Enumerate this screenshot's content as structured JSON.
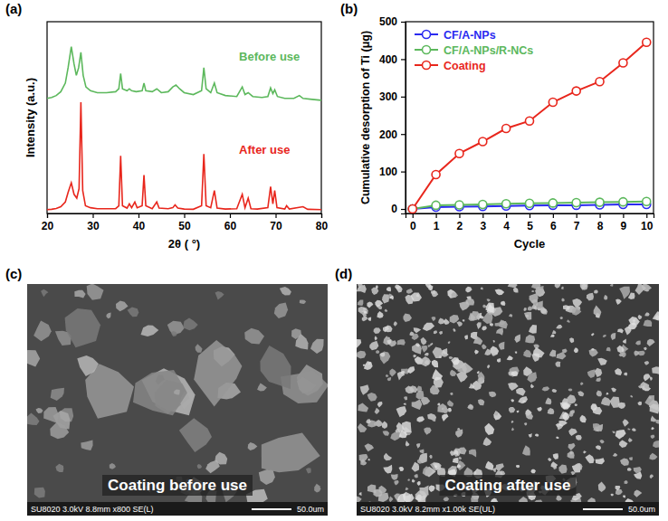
{
  "chart_data": [
    {
      "type": "line",
      "panel": "(a)",
      "x_label": "2θ ( °)",
      "y_label": "Intensity (a.u.)",
      "xlim": [
        20,
        80
      ],
      "xticks": [
        20,
        30,
        40,
        50,
        60,
        70,
        80
      ],
      "ylim": [
        0,
        100
      ],
      "tick_labels": "x",
      "series": [
        {
          "name": "Before use",
          "color": "#5cb85c",
          "x": [
            20,
            21,
            22,
            23,
            24,
            24.6,
            25.3,
            25.9,
            26.4,
            26.9,
            27.4,
            27.9,
            28.5,
            29.5,
            31,
            33,
            35,
            35.7,
            36.1,
            36.5,
            37.5,
            38,
            38.5,
            39.5,
            40.8,
            41.2,
            41.6,
            43,
            44,
            45,
            46.5,
            47.5,
            48.2,
            49,
            50,
            52,
            53.8,
            54.3,
            54.8,
            55.8,
            56.6,
            57.2,
            59,
            61.5,
            62.7,
            63.3,
            64,
            65,
            67,
            68.3,
            68.9,
            69.4,
            69.8,
            70.4,
            72,
            74,
            75.2,
            76,
            78,
            80
          ],
          "values": [
            60,
            60.5,
            61.5,
            63.5,
            68,
            76,
            87,
            78,
            72,
            76,
            84,
            72,
            66,
            64,
            63,
            63,
            63.5,
            65,
            73,
            65,
            64,
            65,
            64,
            63.5,
            64,
            68,
            64,
            63.5,
            65,
            63,
            63.5,
            66,
            67,
            65,
            63,
            62,
            64,
            76,
            65,
            63,
            68,
            63,
            61.5,
            61,
            66,
            62,
            63,
            61,
            60.5,
            61,
            65.5,
            62.5,
            64.5,
            61,
            60,
            60,
            61.5,
            60,
            59.5,
            59
          ]
        },
        {
          "name": "After use",
          "color": "#e8261c",
          "x": [
            20,
            21,
            22,
            23,
            24,
            24.6,
            25.3,
            25.9,
            26.5,
            27,
            27.4,
            27.8,
            28.4,
            29.5,
            31,
            33,
            35,
            35.7,
            36.1,
            36.5,
            37.5,
            38,
            38.5,
            39.2,
            39.7,
            40.8,
            41.2,
            41.6,
            43,
            44,
            44.5,
            46.5,
            47.5,
            48,
            48.6,
            50,
            52,
            53.8,
            54.3,
            54.8,
            55.8,
            56.6,
            57.2,
            59,
            61.5,
            62.7,
            63.3,
            64,
            64.6,
            66,
            68.3,
            68.9,
            69.4,
            69.8,
            70.3,
            72,
            72.4,
            73,
            76,
            77,
            80
          ],
          "values": [
            2,
            2.2,
            2.6,
            3.5,
            6,
            11,
            16,
            10,
            8,
            13,
            58,
            12,
            4,
            3,
            2.5,
            2.5,
            2.5,
            4,
            30,
            4,
            2.8,
            5,
            3,
            6,
            3,
            4,
            20,
            4,
            2.5,
            6,
            2.8,
            2.5,
            3,
            4.5,
            2.8,
            2.3,
            2.2,
            4,
            31,
            4,
            3,
            12,
            2.8,
            2.3,
            2.5,
            10,
            3,
            8,
            2.5,
            2.3,
            3,
            14,
            5,
            12,
            3,
            2.3,
            4,
            2.3,
            3.5,
            2.2,
            2
          ]
        }
      ]
    },
    {
      "type": "line",
      "panel": "(b)",
      "x_label": "Cycle",
      "y_label": "Cumulative desorption of Ti (μg)",
      "x": [
        0,
        1,
        2,
        3,
        4,
        5,
        6,
        7,
        8,
        9,
        10
      ],
      "xlim": [
        -0.3,
        10.3
      ],
      "xticks": [
        0,
        1,
        2,
        3,
        4,
        5,
        6,
        7,
        8,
        9,
        10
      ],
      "ylim": [
        -12,
        500
      ],
      "yticks": [
        0,
        100,
        200,
        300,
        400,
        500
      ],
      "legend": "top-left",
      "marker": "circle-open",
      "line_style": "solid",
      "series": [
        {
          "name": "CF/A-NPs",
          "color": "#2a2af0",
          "values": [
            0,
            5,
            6,
            7,
            8,
            9,
            10,
            10,
            11,
            12,
            12
          ]
        },
        {
          "name": "CF/A-NPs/R-NCs",
          "color": "#5cb85c",
          "values": [
            0,
            10,
            11,
            12,
            14,
            15,
            16,
            17,
            18,
            19,
            20
          ]
        },
        {
          "name": "Coating",
          "color": "#e8261c",
          "values": [
            0,
            92,
            148,
            180,
            215,
            235,
            285,
            315,
            340,
            390,
            445
          ]
        }
      ]
    }
  ],
  "images": [
    {
      "panel": "(c)",
      "label": "Coating before use",
      "caption": "SU8020 3.0kV 8.8mm x800 SE(L)",
      "scale_bar": "50.0um"
    },
    {
      "panel": "(d)",
      "label": "Coating after use",
      "caption": "SU8020 3.0kV 8.2mm x1.00k SE(UL)",
      "scale_bar": "50.0um"
    }
  ]
}
